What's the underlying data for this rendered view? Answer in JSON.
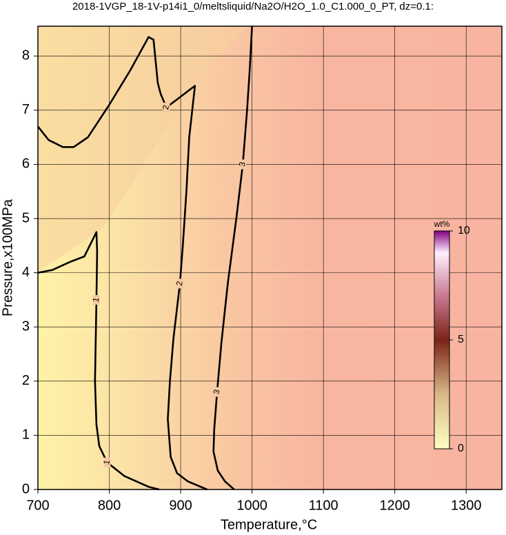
{
  "chart_data": {
    "type": "contour",
    "title": "2018-1VGP_18-1V-p14i1_0/meltsliquid/Na2O/H2O_1.0_C1.000_0_PT, dz=0.1:",
    "x_label": "Temperature,°C",
    "y_label": "Pressure,x100MPa",
    "xlim": [
      700,
      1350
    ],
    "xticks": [
      700,
      800,
      900,
      1000,
      1100,
      1200,
      1300
    ],
    "ylim": [
      0,
      8.55
    ],
    "yticks": [
      0,
      1,
      2,
      3,
      4,
      5,
      6,
      7,
      8
    ],
    "grid": true,
    "contours": [
      {
        "level": 1,
        "color": "#000000",
        "x": [
          700,
          720,
          745,
          765,
          782,
          783,
          782,
          780,
          782,
          786,
          797,
          821,
          855,
          870
        ],
        "y": [
          4.0,
          4.05,
          4.2,
          4.3,
          4.75,
          4.4,
          3.5,
          2.0,
          1.2,
          0.8,
          0.5,
          0.25,
          0.05,
          0
        ]
      },
      {
        "level": 2,
        "color": "#000000",
        "x": [
          700,
          715,
          735,
          750,
          770,
          800,
          830,
          855,
          862,
          865,
          868,
          872,
          880,
          895,
          910,
          920,
          912,
          908,
          903,
          899,
          890,
          885,
          882,
          886,
          895,
          910,
          937
        ],
        "y": [
          6.7,
          6.45,
          6.32,
          6.32,
          6.5,
          7.1,
          7.75,
          8.35,
          8.3,
          7.9,
          7.5,
          7.3,
          7.05,
          7.2,
          7.35,
          7.45,
          6.5,
          5.5,
          4.5,
          3.8,
          2.8,
          2.0,
          1.3,
          0.6,
          0.3,
          0.15,
          0
        ]
      },
      {
        "level": 3,
        "color": "#000000",
        "x": [
          1000,
          997,
          993,
          987,
          978,
          966,
          957,
          951,
          947,
          946,
          952,
          962,
          975
        ],
        "y": [
          8.55,
          7.8,
          7.0,
          6.0,
          5.0,
          3.8,
          2.7,
          1.8,
          1.1,
          0.7,
          0.35,
          0.15,
          0
        ]
      }
    ],
    "colorbar": {
      "label": "wt%",
      "lim": [
        0,
        10
      ],
      "ticks": [
        0,
        5,
        10
      ]
    }
  }
}
